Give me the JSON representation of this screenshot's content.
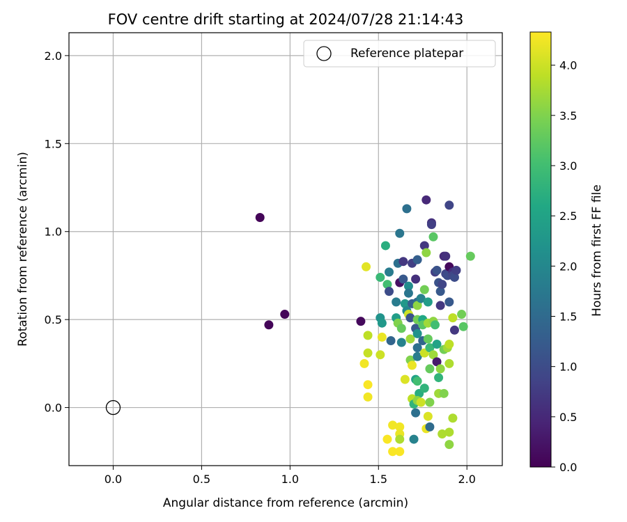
{
  "chart_data": {
    "type": "scatter",
    "title": "FOV centre drift starting at 2024/07/28 21:14:43",
    "xlabel": "Angular distance from reference (arcmin)",
    "ylabel": "Rotation from reference (arcmin)",
    "xlim": [
      -0.25,
      2.2
    ],
    "ylim": [
      -0.33,
      2.13
    ],
    "xticks": [
      0.0,
      0.5,
      1.0,
      1.5,
      2.0
    ],
    "xtick_labels": [
      "0.0",
      "0.5",
      "1.0",
      "1.5",
      "2.0"
    ],
    "yticks": [
      0.0,
      0.5,
      1.0,
      1.5,
      2.0
    ],
    "ytick_labels": [
      "0.0",
      "0.5",
      "1.0",
      "1.5",
      "2.0"
    ],
    "grid": true,
    "legend": {
      "position": "top-right",
      "entries": [
        "Reference platepar"
      ]
    },
    "reference_point": {
      "name": "Reference platepar",
      "x": 0.0,
      "y": 0.0
    },
    "colorbar": {
      "label": "Hours from first FF file",
      "colormap": "viridis",
      "range": [
        0.0,
        4.33
      ],
      "ticks": [
        0.0,
        0.5,
        1.0,
        1.5,
        2.0,
        2.5,
        3.0,
        3.5,
        4.0
      ],
      "tick_labels": [
        "0.0",
        "0.5",
        "1.0",
        "1.5",
        "2.0",
        "2.5",
        "3.0",
        "3.5",
        "4.0"
      ]
    },
    "points": [
      {
        "x": 0.83,
        "y": 1.08,
        "c": 0.05
      },
      {
        "x": 0.88,
        "y": 0.47,
        "c": 0.05
      },
      {
        "x": 0.97,
        "y": 0.53,
        "c": 0.05
      },
      {
        "x": 1.4,
        "y": 0.49,
        "c": 0.1
      },
      {
        "x": 1.43,
        "y": 0.8,
        "c": 4.15
      },
      {
        "x": 1.42,
        "y": 0.25,
        "c": 4.25
      },
      {
        "x": 1.44,
        "y": 0.41,
        "c": 3.9
      },
      {
        "x": 1.44,
        "y": 0.31,
        "c": 3.95
      },
      {
        "x": 1.44,
        "y": 0.13,
        "c": 4.3
      },
      {
        "x": 1.44,
        "y": 0.06,
        "c": 4.25
      },
      {
        "x": 1.51,
        "y": 0.74,
        "c": 2.9
      },
      {
        "x": 1.51,
        "y": 0.51,
        "c": 2.2
      },
      {
        "x": 1.52,
        "y": 0.48,
        "c": 2.3
      },
      {
        "x": 1.51,
        "y": 0.3,
        "c": 4.0
      },
      {
        "x": 1.52,
        "y": 0.4,
        "c": 4.2
      },
      {
        "x": 1.54,
        "y": 0.92,
        "c": 2.7
      },
      {
        "x": 1.55,
        "y": 0.7,
        "c": 3.0
      },
      {
        "x": 1.56,
        "y": 0.66,
        "c": 1.0
      },
      {
        "x": 1.56,
        "y": 0.77,
        "c": 1.8
      },
      {
        "x": 1.57,
        "y": 0.38,
        "c": 1.4
      },
      {
        "x": 1.55,
        "y": -0.18,
        "c": 4.3
      },
      {
        "x": 1.58,
        "y": -0.25,
        "c": 4.3
      },
      {
        "x": 1.58,
        "y": -0.1,
        "c": 4.25
      },
      {
        "x": 1.6,
        "y": 0.6,
        "c": 1.8
      },
      {
        "x": 1.6,
        "y": 0.51,
        "c": 2.4
      },
      {
        "x": 1.61,
        "y": 0.48,
        "c": 3.5
      },
      {
        "x": 1.61,
        "y": 0.82,
        "c": 1.6
      },
      {
        "x": 1.62,
        "y": 0.71,
        "c": 0.2
      },
      {
        "x": 1.62,
        "y": 0.99,
        "c": 1.7
      },
      {
        "x": 1.63,
        "y": 0.45,
        "c": 3.3
      },
      {
        "x": 1.63,
        "y": 0.37,
        "c": 1.9
      },
      {
        "x": 1.62,
        "y": -0.25,
        "c": 4.3
      },
      {
        "x": 1.62,
        "y": -0.11,
        "c": 4.25
      },
      {
        "x": 1.62,
        "y": -0.15,
        "c": 4.2
      },
      {
        "x": 1.62,
        "y": -0.18,
        "c": 3.8
      },
      {
        "x": 1.65,
        "y": 0.59,
        "c": 2.3
      },
      {
        "x": 1.64,
        "y": 0.73,
        "c": 1.2
      },
      {
        "x": 1.64,
        "y": 0.83,
        "c": 0.7
      },
      {
        "x": 1.66,
        "y": 1.13,
        "c": 1.6
      },
      {
        "x": 1.65,
        "y": 0.16,
        "c": 4.1
      },
      {
        "x": 1.66,
        "y": 0.55,
        "c": 2.0
      },
      {
        "x": 1.67,
        "y": 0.69,
        "c": 2.1
      },
      {
        "x": 1.67,
        "y": 0.65,
        "c": 1.7
      },
      {
        "x": 1.67,
        "y": 0.53,
        "c": 4.0
      },
      {
        "x": 1.68,
        "y": 0.51,
        "c": 1.1
      },
      {
        "x": 1.68,
        "y": 0.39,
        "c": 3.7
      },
      {
        "x": 1.68,
        "y": 0.27,
        "c": 3.5
      },
      {
        "x": 1.69,
        "y": 0.24,
        "c": 4.2
      },
      {
        "x": 1.69,
        "y": 0.82,
        "c": 0.8
      },
      {
        "x": 1.69,
        "y": 0.59,
        "c": 1.3
      },
      {
        "x": 1.69,
        "y": 0.05,
        "c": 3.9
      },
      {
        "x": 1.7,
        "y": 0.02,
        "c": 2.8
      },
      {
        "x": 1.7,
        "y": -0.18,
        "c": 1.9
      },
      {
        "x": 1.71,
        "y": 0.73,
        "c": 0.6
      },
      {
        "x": 1.71,
        "y": 0.45,
        "c": 1.2
      },
      {
        "x": 1.72,
        "y": 0.84,
        "c": 1.3
      },
      {
        "x": 1.72,
        "y": 0.6,
        "c": 1.5
      },
      {
        "x": 1.72,
        "y": 0.58,
        "c": 3.6
      },
      {
        "x": 1.72,
        "y": 0.5,
        "c": 3.4
      },
      {
        "x": 1.72,
        "y": 0.42,
        "c": 2.2
      },
      {
        "x": 1.72,
        "y": 0.34,
        "c": 1.6
      },
      {
        "x": 1.72,
        "y": 0.29,
        "c": 1.8
      },
      {
        "x": 1.71,
        "y": 0.16,
        "c": 2.5
      },
      {
        "x": 1.72,
        "y": 0.15,
        "c": 3.0
      },
      {
        "x": 1.73,
        "y": 0.08,
        "c": 2.7
      },
      {
        "x": 1.71,
        "y": -0.03,
        "c": 1.6
      },
      {
        "x": 1.72,
        "y": 0.04,
        "c": 3.6
      },
      {
        "x": 1.74,
        "y": 0.03,
        "c": 4.0
      },
      {
        "x": 1.74,
        "y": 0.62,
        "c": 1.9
      },
      {
        "x": 1.75,
        "y": 0.38,
        "c": 1.4
      },
      {
        "x": 1.75,
        "y": 0.5,
        "c": 2.6
      },
      {
        "x": 1.75,
        "y": 0.47,
        "c": 3.2
      },
      {
        "x": 1.76,
        "y": 0.31,
        "c": 4.0
      },
      {
        "x": 1.76,
        "y": 0.11,
        "c": 2.8
      },
      {
        "x": 1.76,
        "y": 0.67,
        "c": 3.4
      },
      {
        "x": 1.76,
        "y": 0.92,
        "c": 0.7
      },
      {
        "x": 1.77,
        "y": 1.18,
        "c": 0.5
      },
      {
        "x": 1.77,
        "y": 0.88,
        "c": 3.6
      },
      {
        "x": 1.78,
        "y": 0.6,
        "c": 2.4
      },
      {
        "x": 1.78,
        "y": 0.39,
        "c": 3.3
      },
      {
        "x": 1.78,
        "y": 0.48,
        "c": 3.7
      },
      {
        "x": 1.77,
        "y": -0.12,
        "c": 4.2
      },
      {
        "x": 1.78,
        "y": -0.05,
        "c": 4.1
      },
      {
        "x": 1.79,
        "y": 0.22,
        "c": 3.3
      },
      {
        "x": 1.79,
        "y": 0.34,
        "c": 2.9
      },
      {
        "x": 1.79,
        "y": 0.03,
        "c": 3.5
      },
      {
        "x": 1.79,
        "y": -0.11,
        "c": 1.5
      },
      {
        "x": 1.8,
        "y": 1.05,
        "c": 0.6
      },
      {
        "x": 1.8,
        "y": 1.04,
        "c": 0.8
      },
      {
        "x": 1.81,
        "y": 0.97,
        "c": 3.2
      },
      {
        "x": 1.81,
        "y": 0.49,
        "c": 3.6
      },
      {
        "x": 1.81,
        "y": 0.3,
        "c": 3.7
      },
      {
        "x": 1.82,
        "y": 0.77,
        "c": 0.8
      },
      {
        "x": 1.82,
        "y": 0.47,
        "c": 3.0
      },
      {
        "x": 1.83,
        "y": 0.78,
        "c": 1.1
      },
      {
        "x": 1.83,
        "y": 0.36,
        "c": 2.5
      },
      {
        "x": 1.83,
        "y": 0.26,
        "c": 0.3
      },
      {
        "x": 1.84,
        "y": 0.71,
        "c": 1.1
      },
      {
        "x": 1.84,
        "y": 0.17,
        "c": 2.8
      },
      {
        "x": 1.84,
        "y": 0.08,
        "c": 3.7
      },
      {
        "x": 1.85,
        "y": 0.66,
        "c": 1.2
      },
      {
        "x": 1.85,
        "y": 0.58,
        "c": 0.7
      },
      {
        "x": 1.85,
        "y": 0.22,
        "c": 3.6
      },
      {
        "x": 1.86,
        "y": -0.15,
        "c": 3.8
      },
      {
        "x": 1.86,
        "y": 0.7,
        "c": 0.9
      },
      {
        "x": 1.87,
        "y": 0.86,
        "c": 0.5
      },
      {
        "x": 1.87,
        "y": 0.08,
        "c": 3.5
      },
      {
        "x": 1.87,
        "y": 0.33,
        "c": 3.4
      },
      {
        "x": 1.88,
        "y": 0.86,
        "c": 0.6
      },
      {
        "x": 1.88,
        "y": 0.76,
        "c": 0.9
      },
      {
        "x": 1.89,
        "y": 0.75,
        "c": 1.0
      },
      {
        "x": 1.89,
        "y": 0.34,
        "c": 3.7
      },
      {
        "x": 1.9,
        "y": 1.15,
        "c": 0.9
      },
      {
        "x": 1.9,
        "y": 0.8,
        "c": 0.1
      },
      {
        "x": 1.9,
        "y": 0.6,
        "c": 1.2
      },
      {
        "x": 1.9,
        "y": 0.36,
        "c": 3.9
      },
      {
        "x": 1.9,
        "y": 0.25,
        "c": 3.8
      },
      {
        "x": 1.9,
        "y": -0.14,
        "c": 3.8
      },
      {
        "x": 1.9,
        "y": -0.21,
        "c": 3.6
      },
      {
        "x": 1.92,
        "y": 0.77,
        "c": 0.6
      },
      {
        "x": 1.92,
        "y": 0.75,
        "c": 0.9
      },
      {
        "x": 1.92,
        "y": 0.51,
        "c": 3.9
      },
      {
        "x": 1.92,
        "y": -0.06,
        "c": 3.8
      },
      {
        "x": 1.93,
        "y": 0.74,
        "c": 1.0
      },
      {
        "x": 1.93,
        "y": 0.44,
        "c": 0.7
      },
      {
        "x": 1.94,
        "y": 0.78,
        "c": 0.8
      },
      {
        "x": 1.97,
        "y": 0.53,
        "c": 3.4
      },
      {
        "x": 1.98,
        "y": 0.46,
        "c": 3.2
      },
      {
        "x": 2.02,
        "y": 0.86,
        "c": 3.3
      }
    ]
  }
}
